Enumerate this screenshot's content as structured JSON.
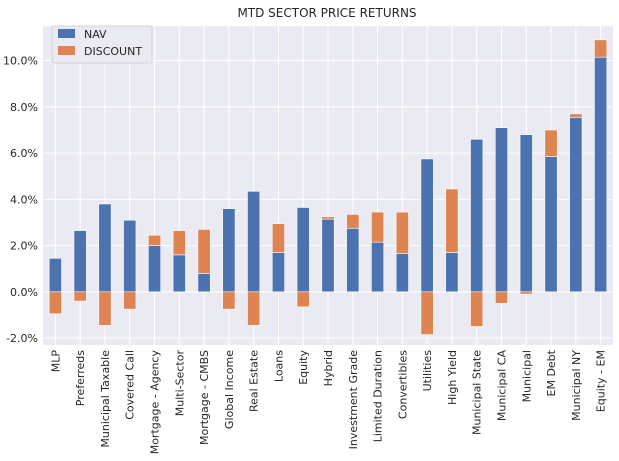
{
  "chart_data": {
    "type": "bar",
    "stacked": true,
    "title": "MTD SECTOR PRICE RETURNS",
    "xlabel": "",
    "ylabel": "",
    "ylim": [
      -2.3,
      11.5
    ],
    "yticks": [
      -2,
      0,
      2,
      4,
      6,
      8,
      10
    ],
    "ytick_labels": [
      "-2.0%",
      "0.0%",
      "2.0%",
      "4.0%",
      "6.0%",
      "8.0%",
      "10.0%"
    ],
    "grid": true,
    "legend_position": "top-left",
    "categories": [
      "MLP",
      "Preferreds",
      "Municipal Taxable",
      "Covered Call",
      "Mortgage - Agency",
      "Multi-Sector",
      "Mortgage - CMBS",
      "Global Income",
      "Real Estate",
      "Loans",
      "Equity",
      "Hybrid",
      "Investment Grade",
      "Limited Duration",
      "Convertibles",
      "Utilities",
      "High Yield",
      "Municipal State",
      "Municipal CA",
      "Municipal",
      "EM Debt",
      "Municipal NY",
      "Equity - EM"
    ],
    "series": [
      {
        "name": "NAV",
        "color": "#4c72b0",
        "values": [
          1.45,
          2.65,
          3.8,
          3.1,
          2.0,
          1.6,
          0.8,
          3.6,
          4.35,
          1.7,
          3.65,
          3.15,
          2.75,
          2.15,
          1.65,
          5.75,
          1.7,
          6.6,
          7.1,
          6.8,
          5.85,
          7.55,
          10.15
        ]
      },
      {
        "name": "DISCOUNT",
        "color": "#dd8452",
        "values": [
          -0.95,
          -0.4,
          -1.45,
          -0.75,
          0.45,
          1.05,
          1.9,
          -0.75,
          -1.45,
          1.25,
          -0.65,
          0.1,
          0.6,
          1.3,
          1.8,
          -1.85,
          2.75,
          -1.5,
          -0.5,
          -0.1,
          1.15,
          0.15,
          0.75
        ]
      }
    ]
  }
}
